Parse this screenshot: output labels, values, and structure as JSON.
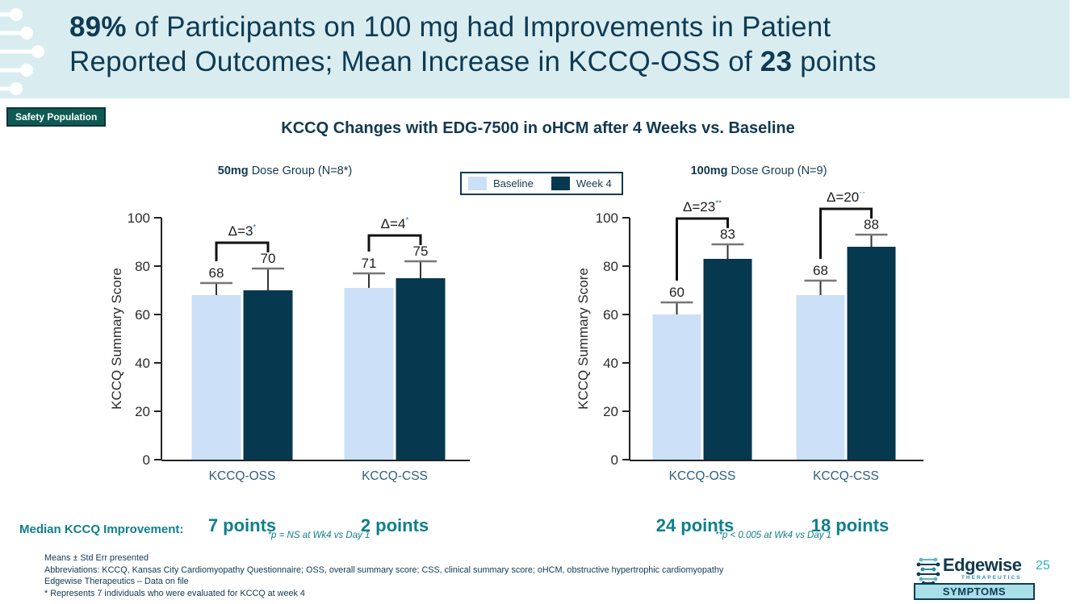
{
  "header": {
    "title_line1": [
      {
        "t": "89%",
        "b": true
      },
      {
        "t": " of Participants on 100 mg had Improvements in Patient",
        "b": false
      }
    ],
    "title_line2": [
      {
        "t": "Reported Outcomes; Mean Increase in KCCQ-OSS of ",
        "b": false
      },
      {
        "t": "23",
        "b": true
      },
      {
        "t": " points",
        "b": false
      }
    ]
  },
  "badges": {
    "safety": "Safety Population",
    "symptoms": "SYMPTOMS"
  },
  "section": {
    "title": "KCCQ Changes with EDG-7500 in oHCM after 4 Weeks vs. Baseline"
  },
  "subtitles": {
    "left": [
      {
        "t": "50mg",
        "b": true
      },
      {
        "t": " Dose Group (N=8*)",
        "b": false
      }
    ],
    "right": [
      {
        "t": "100mg",
        "b": true
      },
      {
        "t": " Dose Group (N=9)",
        "b": false
      }
    ]
  },
  "legend": {
    "items": [
      {
        "label": "Baseline",
        "color": "#cbdff6"
      },
      {
        "label": "Week 4",
        "color": "#06384f"
      }
    ]
  },
  "median_row": {
    "label": "Median KCCQ Improvement:"
  },
  "chart_data": [
    {
      "type": "bar",
      "title": "50mg Dose Group (N=8*)",
      "ylabel": "KCCQ Summary Score",
      "ylim": [
        0,
        100
      ],
      "yticks": [
        0,
        20,
        40,
        60,
        80,
        100
      ],
      "categories": [
        "KCCQ-OSS",
        "KCCQ-CSS"
      ],
      "series": [
        {
          "name": "Baseline",
          "values": [
            68,
            71
          ],
          "errors": [
            5,
            6
          ]
        },
        {
          "name": "Week 4",
          "values": [
            70,
            75
          ],
          "errors": [
            9,
            7
          ]
        }
      ],
      "deltas": [
        {
          "label": "Δ=3",
          "sup": "*"
        },
        {
          "label": "Δ=4",
          "sup": "*"
        }
      ],
      "medians": [
        "7 points",
        "2 points"
      ],
      "footnote": "*p = NS at Wk4 vs Day 1",
      "legend_position": "top-center",
      "grid": false
    },
    {
      "type": "bar",
      "title": "100mg Dose Group (N=9)",
      "ylabel": "KCCQ Summary Score",
      "ylim": [
        0,
        100
      ],
      "yticks": [
        0,
        20,
        40,
        60,
        80,
        100
      ],
      "categories": [
        "KCCQ-OSS",
        "KCCQ-CSS"
      ],
      "series": [
        {
          "name": "Baseline",
          "values": [
            60,
            68
          ],
          "errors": [
            5,
            6
          ]
        },
        {
          "name": "Week 4",
          "values": [
            83,
            88
          ],
          "errors": [
            6,
            5
          ]
        }
      ],
      "deltas": [
        {
          "label": "Δ=23",
          "sup": "**"
        },
        {
          "label": "Δ=20",
          "sup": "**"
        }
      ],
      "medians": [
        "24 points",
        "18 points"
      ],
      "footnote": "**p < 0.005 at Wk4 vs Day 1",
      "legend_position": "top-center",
      "grid": false
    }
  ],
  "footnotes": {
    "lines": [
      "Means ± Std Err presented",
      "Abbreviations: KCCQ, Kansas City Cardiomyopathy Questionnaire; OSS, overall summary score; CSS, clinical summary score; oHCM, obstructive hypertrophic cardiomyopathy",
      "Edgewise Therapeutics – Data on file",
      "* Represents 7 individuals who were evaluated for KCCQ at week 4"
    ]
  },
  "logo": {
    "name": "Edgewise",
    "sub": "THERAPEUTICS"
  },
  "page_number": "25",
  "colors": {
    "header_bg": "#d9edf0",
    "navy": "#0e3a54",
    "baseline_bar": "#cbdff6",
    "week4_bar": "#06384f",
    "teal_text": "#0e7f8d",
    "safety_badge_bg": "#0f5a52",
    "symptoms_badge_bg": "#a9dfe6",
    "page_number_teal": "#2ab3c0",
    "asterisk_blue": "#4179a8",
    "category_label": "#2e5e7e"
  }
}
